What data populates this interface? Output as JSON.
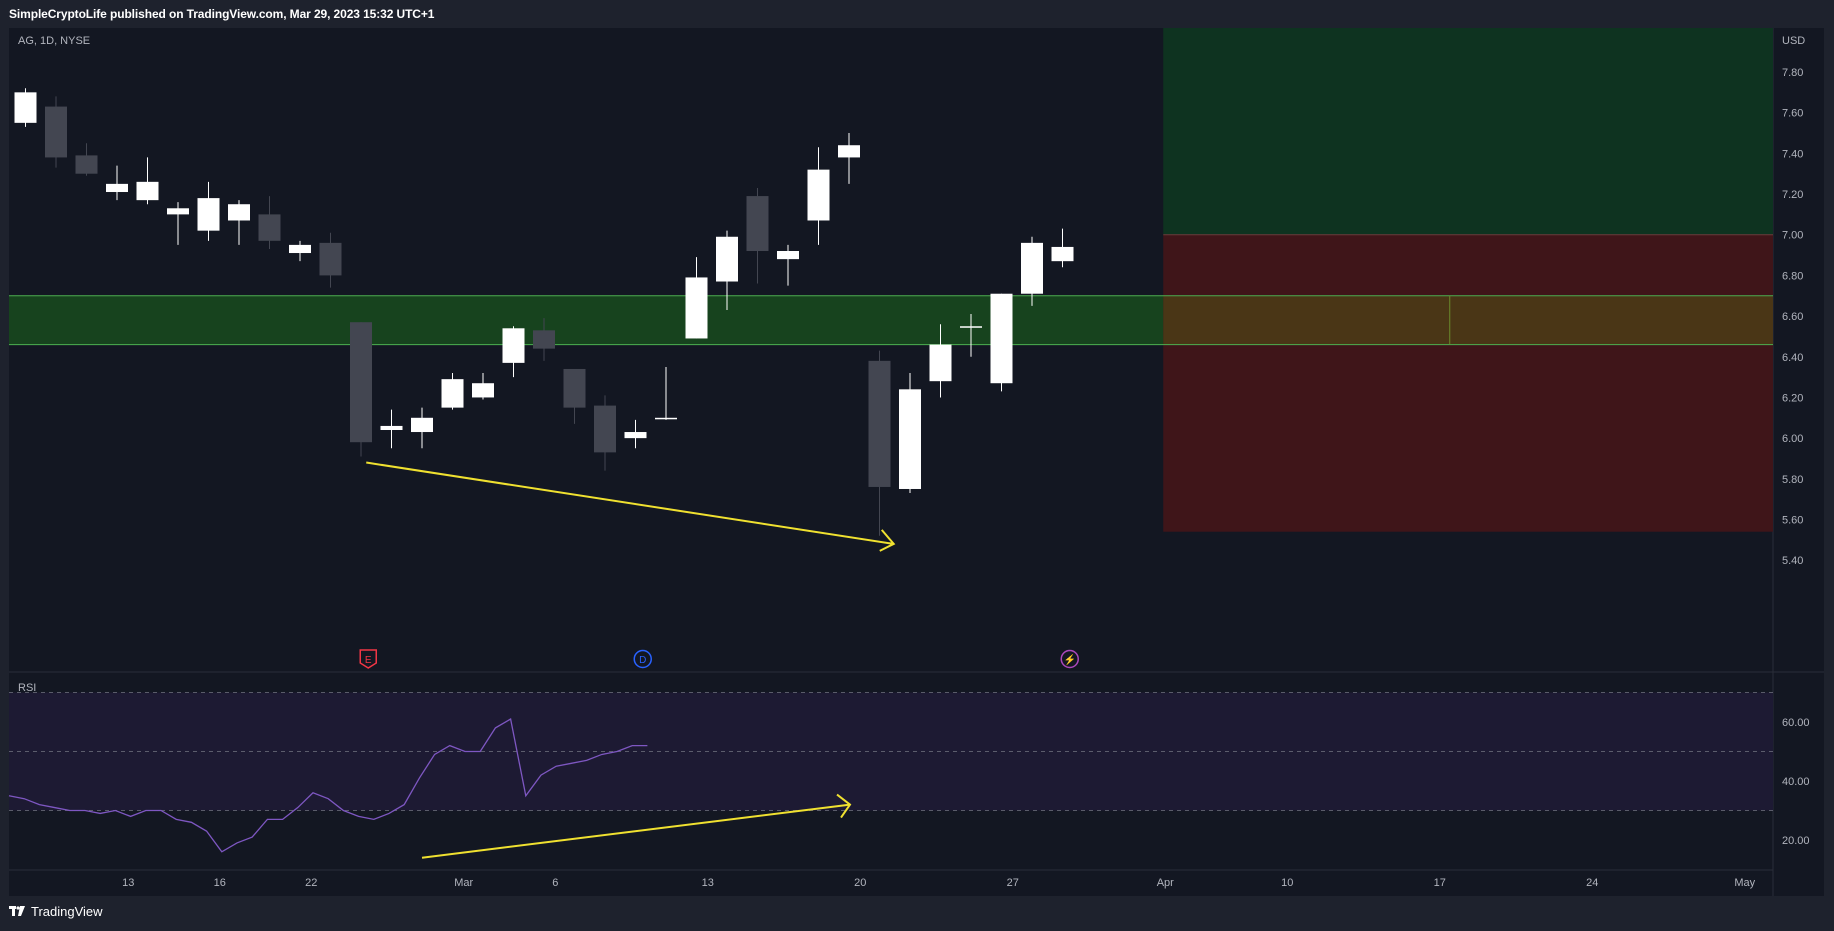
{
  "header": {
    "published": "SimpleCryptoLife published on TradingView.com, Mar 29, 2023 15:32 UTC+1"
  },
  "footer": {
    "brand": "TradingView"
  },
  "chart_data": [
    {
      "type": "candlestick",
      "title": "AG, 1D, NYSE",
      "currency_label": "USD",
      "ylim": [
        5.32,
        7.96
      ],
      "y_ticks": [
        "7.80",
        "7.60",
        "7.40",
        "7.20",
        "7.00",
        "6.80",
        "6.60",
        "6.40",
        "6.20",
        "6.00",
        "5.80",
        "5.60",
        "5.40"
      ],
      "x_ticks": [
        {
          "label": "13",
          "i": 3.5
        },
        {
          "label": "16",
          "i": 6.5
        },
        {
          "label": "22",
          "i": 9.5
        },
        {
          "label": "Mar",
          "i": 14.5
        },
        {
          "label": "6",
          "i": 17.5
        },
        {
          "label": "13",
          "i": 22.5
        },
        {
          "label": "20",
          "i": 27.5
        },
        {
          "label": "27",
          "i": 32.5
        },
        {
          "label": "Apr",
          "i": 37.5
        },
        {
          "label": "10",
          "i": 41.5
        },
        {
          "label": "17",
          "i": 46.5
        },
        {
          "label": "24",
          "i": 51.5
        },
        {
          "label": "May",
          "i": 56.5
        }
      ],
      "candles": [
        {
          "o": 7.55,
          "h": 7.72,
          "l": 7.53,
          "c": 7.7
        },
        {
          "o": 7.63,
          "h": 7.68,
          "l": 7.33,
          "c": 7.38
        },
        {
          "o": 7.39,
          "h": 7.45,
          "l": 7.29,
          "c": 7.3
        },
        {
          "o": 7.21,
          "h": 7.34,
          "l": 7.17,
          "c": 7.25
        },
        {
          "o": 7.17,
          "h": 7.38,
          "l": 7.15,
          "c": 7.26
        },
        {
          "o": 7.1,
          "h": 7.16,
          "l": 6.95,
          "c": 7.13
        },
        {
          "o": 7.02,
          "h": 7.26,
          "l": 6.97,
          "c": 7.18
        },
        {
          "o": 7.07,
          "h": 7.17,
          "l": 6.95,
          "c": 7.15
        },
        {
          "o": 7.1,
          "h": 7.19,
          "l": 6.93,
          "c": 6.97
        },
        {
          "o": 6.91,
          "h": 6.97,
          "l": 6.87,
          "c": 6.95
        },
        {
          "o": 6.96,
          "h": 7.01,
          "l": 6.74,
          "c": 6.8
        },
        {
          "o": 6.57,
          "h": 6.57,
          "l": 5.91,
          "c": 5.98
        },
        {
          "o": 6.04,
          "h": 6.14,
          "l": 5.95,
          "c": 6.06
        },
        {
          "o": 6.03,
          "h": 6.15,
          "l": 5.95,
          "c": 6.1
        },
        {
          "o": 6.15,
          "h": 6.32,
          "l": 6.14,
          "c": 6.29
        },
        {
          "o": 6.2,
          "h": 6.32,
          "l": 6.19,
          "c": 6.27
        },
        {
          "o": 6.37,
          "h": 6.55,
          "l": 6.3,
          "c": 6.54
        },
        {
          "o": 6.53,
          "h": 6.59,
          "l": 6.38,
          "c": 6.44
        },
        {
          "o": 6.34,
          "h": 6.34,
          "l": 6.07,
          "c": 6.15
        },
        {
          "o": 6.16,
          "h": 6.21,
          "l": 5.84,
          "c": 5.93
        },
        {
          "o": 6.0,
          "h": 6.09,
          "l": 5.95,
          "c": 6.03
        },
        {
          "o": 6.1,
          "h": 6.35,
          "l": 6.09,
          "c": 6.1
        },
        {
          "o": 6.49,
          "h": 6.89,
          "l": 6.49,
          "c": 6.79
        },
        {
          "o": 6.77,
          "h": 7.02,
          "l": 6.63,
          "c": 6.99
        },
        {
          "o": 7.19,
          "h": 7.23,
          "l": 6.76,
          "c": 6.92
        },
        {
          "o": 6.88,
          "h": 6.95,
          "l": 6.75,
          "c": 6.92
        },
        {
          "o": 7.07,
          "h": 7.43,
          "l": 6.95,
          "c": 7.32
        },
        {
          "o": 7.38,
          "h": 7.5,
          "l": 7.25,
          "c": 7.44
        },
        {
          "o": 6.38,
          "h": 6.43,
          "l": 5.52,
          "c": 5.76
        },
        {
          "o": 5.75,
          "h": 6.32,
          "l": 5.73,
          "c": 6.24
        },
        {
          "o": 6.28,
          "h": 6.56,
          "l": 6.2,
          "c": 6.46
        },
        {
          "o": 6.55,
          "h": 6.61,
          "l": 6.4,
          "c": 6.55
        },
        {
          "o": 6.27,
          "h": 6.71,
          "l": 6.23,
          "c": 6.71
        },
        {
          "o": 6.71,
          "h": 6.99,
          "l": 6.65,
          "c": 6.96
        },
        {
          "o": 6.87,
          "h": 7.03,
          "l": 6.84,
          "c": 6.94
        }
      ],
      "support_zone": {
        "from": 6.46,
        "to": 6.7
      },
      "position": {
        "entry": 6.57,
        "target_top": 7.98,
        "stop_bottom": 5.54,
        "entry_level_top": 7.0,
        "start_i": 37.5
      },
      "annotations": [
        "E",
        "D",
        "⚡"
      ],
      "price_arrow": {
        "from": {
          "i": 11.5,
          "y": 5.88
        },
        "to": {
          "i": 28.5,
          "y": 5.48
        }
      }
    },
    {
      "type": "line",
      "title": "RSI",
      "ylim": [
        10,
        75
      ],
      "y_ticks": [
        "60.00",
        "40.00",
        "20.00"
      ],
      "bands": {
        "upper": 70,
        "middle": 50,
        "lower": 30
      },
      "values": [
        35,
        34,
        32,
        31,
        30,
        30,
        29,
        30,
        28,
        30,
        30,
        27,
        26,
        23,
        16,
        19,
        21,
        27,
        27,
        31,
        36,
        34,
        30,
        28,
        27,
        29,
        32,
        41,
        49,
        52,
        50,
        50,
        58,
        61,
        35,
        42,
        45,
        46,
        47,
        49,
        50,
        52,
        52
      ],
      "rsi_arrow": {
        "from": {
          "i": 13.5,
          "y": 14
        },
        "to": {
          "i": 27.5,
          "y": 32
        }
      }
    }
  ],
  "colors": {
    "bg": "#131722",
    "up": "#ffffff",
    "down": "#434651",
    "zone": "#1b5e20",
    "zone_line": "#4caf50",
    "target": "#0e3320",
    "stop": "#3f1519",
    "rsi": "#7e57c2",
    "arrow": "#f0e130"
  }
}
